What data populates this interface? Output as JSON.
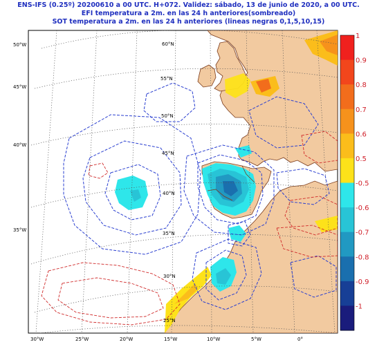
{
  "title": {
    "line1": "ENS-IFS (0.25º) 20200610 a 00 UTC.  H+072. Validez: sábado, 13 de junio de 2020,  a   00 UTC.",
    "line2": "EFI temperatura a 2m. en las 24 h anteriores(sombreado)",
    "line3": "SOT temperatura a 2m. en las 24 h anteriores (lineas negras 0,1,5,10,15)"
  },
  "map": {
    "longitude_labels_left": [
      "50°W",
      "45°W",
      "40°W",
      "35°W"
    ],
    "longitude_labels_bottom": [
      "30°W",
      "25°W",
      "20°W",
      "15°W",
      "10°W",
      "5°W",
      "0°"
    ],
    "latitude_labels": [
      "60°N",
      "55°N",
      "50°N",
      "45°N",
      "40°N",
      "35°N",
      "30°N",
      "25°N"
    ],
    "colors": {
      "ocean": "#ffffff",
      "land": "#f2caa0",
      "border": "#7a3a1a",
      "graticule": "#555555",
      "cold_contour": "#2a3fd0",
      "warm_contour": "#d02a2a"
    }
  },
  "colorbar": {
    "labels": [
      "1",
      "0.9",
      "0.8",
      "0.7",
      "0.6",
      "0.5",
      "-0.5",
      "-0.6",
      "-0.7",
      "-0.8",
      "-0.9",
      "-1"
    ],
    "colors": [
      "#f0211e",
      "#f2461c",
      "#f26d1c",
      "#f6921c",
      "#fbbd1b",
      "#fde21a",
      "#2ee6ea",
      "#28c4d6",
      "#2199c2",
      "#1a6fae",
      "#173f96",
      "#1a1c7c"
    ]
  }
}
